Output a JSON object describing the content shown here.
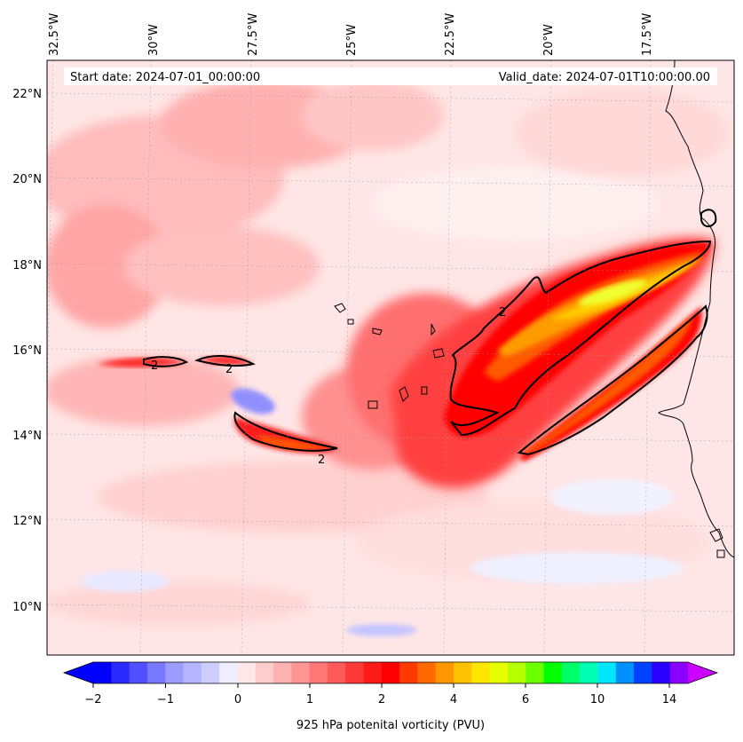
{
  "header": {
    "start_date": "Start date: 2024-07-01_00:00:00",
    "valid_date": "Valid_date: 2024-07-01T10:00:00.00"
  },
  "lon_labels": [
    "32.5°W",
    "30°W",
    "27.5°W",
    "25°W",
    "22.5°W",
    "20°W",
    "17.5°W"
  ],
  "lat_labels": [
    "22°N",
    "20°N",
    "18°N",
    "16°N",
    "14°N",
    "12°N",
    "10°N"
  ],
  "contour_labels": [
    "2",
    "2",
    "2",
    "2"
  ],
  "colorbar": {
    "label": "925 hPa potenital vorticity (PVU)",
    "ticks": [
      "−2",
      "−1",
      "0",
      "1",
      "2",
      "4",
      "6",
      "10",
      "14"
    ],
    "colors": [
      "#0000ff",
      "#2a2aff",
      "#5050ff",
      "#7777ff",
      "#9c9cff",
      "#b5b5ff",
      "#cdcdff",
      "#eeeeff",
      "#ffe7e7",
      "#ffcccc",
      "#ffb2b2",
      "#ff9595",
      "#ff7777",
      "#ff5a5a",
      "#ff3838",
      "#ff1a1a",
      "#ff0000",
      "#ff3a00",
      "#ff6a00",
      "#ff9800",
      "#ffc200",
      "#ffe600",
      "#e6ff00",
      "#b6ff00",
      "#6cff00",
      "#00ff00",
      "#00ff6a",
      "#00ffb4",
      "#00e6ff",
      "#0090ff",
      "#0040ff",
      "#2a00ff",
      "#8a00ff"
    ],
    "under_color": "#0000ff",
    "over_color": "#cc00ff"
  },
  "colors": {
    "background_field": "#ffe4e4",
    "contour": "#000000",
    "coast": "#000000"
  }
}
